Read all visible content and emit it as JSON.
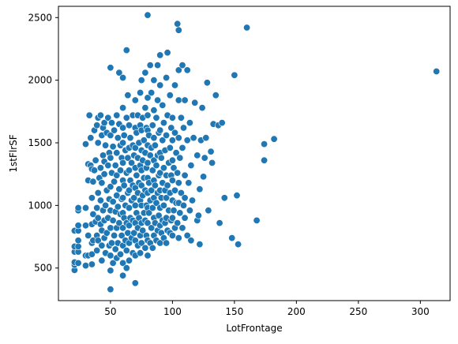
{
  "chart_data": {
    "type": "scatter",
    "title": "",
    "xlabel": "LotFrontage",
    "ylabel": "1stFlrSF",
    "xlim": [
      8,
      324
    ],
    "ylim": [
      240,
      2590
    ],
    "xticks": [
      50,
      100,
      150,
      200,
      250,
      300
    ],
    "yticks": [
      500,
      1000,
      1500,
      2000,
      2500
    ],
    "grid": false,
    "legend": "none",
    "marker_color": "#1f77b4",
    "points": [
      [
        21,
        483
      ],
      [
        21,
        525
      ],
      [
        21,
        546
      ],
      [
        21,
        630
      ],
      [
        21,
        672
      ],
      [
        21,
        798
      ],
      [
        24,
        540
      ],
      [
        24,
        630
      ],
      [
        24,
        672
      ],
      [
        24,
        720
      ],
      [
        24,
        798
      ],
      [
        24,
        840
      ],
      [
        24,
        960
      ],
      [
        24,
        980
      ],
      [
        30,
        520
      ],
      [
        30,
        600
      ],
      [
        30,
        840
      ],
      [
        30,
        980
      ],
      [
        30,
        1490
      ],
      [
        32,
        600
      ],
      [
        32,
        760
      ],
      [
        32,
        1200
      ],
      [
        32,
        1330
      ],
      [
        33,
        1720
      ],
      [
        34,
        1320
      ],
      [
        34,
        1540
      ],
      [
        35,
        530
      ],
      [
        35,
        610
      ],
      [
        35,
        700
      ],
      [
        35,
        850
      ],
      [
        35,
        1060
      ],
      [
        35,
        1290
      ],
      [
        36,
        720
      ],
      [
        36,
        930
      ],
      [
        36,
        1190
      ],
      [
        37,
        1280
      ],
      [
        37,
        1600
      ],
      [
        38,
        870
      ],
      [
        38,
        1360
      ],
      [
        39,
        640
      ],
      [
        39,
        760
      ],
      [
        39,
        980
      ],
      [
        39,
        1640
      ],
      [
        40,
        720
      ],
      [
        40,
        900
      ],
      [
        40,
        1100
      ],
      [
        40,
        1500
      ],
      [
        40,
        1700
      ],
      [
        41,
        1220
      ],
      [
        42,
        850
      ],
      [
        42,
        1040
      ],
      [
        42,
        1300
      ],
      [
        42,
        1720
      ],
      [
        43,
        560
      ],
      [
        43,
        680
      ],
      [
        43,
        800
      ],
      [
        43,
        1180
      ],
      [
        43,
        1560
      ],
      [
        44,
        960
      ],
      [
        44,
        1400
      ],
      [
        44,
        1620
      ],
      [
        45,
        740
      ],
      [
        45,
        880
      ],
      [
        45,
        1250
      ],
      [
        45,
        1350
      ],
      [
        45,
        1660
      ],
      [
        46,
        620
      ],
      [
        46,
        1000
      ],
      [
        46,
        1480
      ],
      [
        47,
        780
      ],
      [
        47,
        1120
      ],
      [
        47,
        1580
      ],
      [
        48,
        900
      ],
      [
        48,
        1320
      ],
      [
        48,
        1700
      ],
      [
        49,
        680
      ],
      [
        49,
        1050
      ],
      [
        49,
        1420
      ],
      [
        50,
        330
      ],
      [
        50,
        480
      ],
      [
        50,
        600
      ],
      [
        50,
        820
      ],
      [
        50,
        960
      ],
      [
        50,
        1150
      ],
      [
        50,
        1380
      ],
      [
        50,
        1560
      ],
      [
        50,
        2100
      ],
      [
        51,
        700
      ],
      [
        51,
        1260
      ],
      [
        51,
        1660
      ],
      [
        52,
        540
      ],
      [
        52,
        880
      ],
      [
        52,
        1030
      ],
      [
        52,
        1470
      ],
      [
        53,
        760
      ],
      [
        53,
        1190
      ],
      [
        53,
        1600
      ],
      [
        54,
        650
      ],
      [
        54,
        950
      ],
      [
        54,
        1320
      ],
      [
        55,
        580
      ],
      [
        55,
        820
      ],
      [
        55,
        1080
      ],
      [
        55,
        1240
      ],
      [
        55,
        1420
      ],
      [
        55,
        1720
      ],
      [
        56,
        700
      ],
      [
        56,
        990
      ],
      [
        56,
        1540
      ],
      [
        57,
        860
      ],
      [
        57,
        1130
      ],
      [
        57,
        1650
      ],
      [
        57,
        2060
      ],
      [
        58,
        610
      ],
      [
        58,
        930
      ],
      [
        58,
        1280
      ],
      [
        58,
        1480
      ],
      [
        59,
        760
      ],
      [
        59,
        1050
      ],
      [
        59,
        1380
      ],
      [
        60,
        440
      ],
      [
        60,
        540
      ],
      [
        60,
        680
      ],
      [
        60,
        820
      ],
      [
        60,
        940
      ],
      [
        60,
        1060
      ],
      [
        60,
        1200
      ],
      [
        60,
        1340
      ],
      [
        60,
        1500
      ],
      [
        60,
        1620
      ],
      [
        60,
        1780
      ],
      [
        60,
        2020
      ],
      [
        61,
        900
      ],
      [
        61,
        1160
      ],
      [
        61,
        1560
      ],
      [
        62,
        720
      ],
      [
        62,
        1000
      ],
      [
        62,
        1440
      ],
      [
        63,
        500
      ],
      [
        63,
        640
      ],
      [
        63,
        860
      ],
      [
        63,
        1260
      ],
      [
        63,
        1700
      ],
      [
        63,
        2240
      ],
      [
        64,
        780
      ],
      [
        64,
        1100
      ],
      [
        64,
        1380
      ],
      [
        64,
        1880
      ],
      [
        65,
        560
      ],
      [
        65,
        700
      ],
      [
        65,
        840
      ],
      [
        65,
        980
      ],
      [
        65,
        1120
      ],
      [
        65,
        1280
      ],
      [
        65,
        1460
      ],
      [
        65,
        1640
      ],
      [
        66,
        900
      ],
      [
        66,
        1200
      ],
      [
        66,
        1540
      ],
      [
        67,
        740
      ],
      [
        67,
        1040
      ],
      [
        67,
        1340
      ],
      [
        68,
        620
      ],
      [
        68,
        880
      ],
      [
        68,
        1160
      ],
      [
        68,
        1480
      ],
      [
        68,
        1720
      ],
      [
        69,
        780
      ],
      [
        69,
        1060
      ],
      [
        69,
        1400
      ],
      [
        70,
        380
      ],
      [
        70,
        600
      ],
      [
        70,
        720
      ],
      [
        70,
        860
      ],
      [
        70,
        1000
      ],
      [
        70,
        1140
      ],
      [
        70,
        1300
      ],
      [
        70,
        1460
      ],
      [
        70,
        1620
      ],
      [
        70,
        1840
      ],
      [
        71,
        940
      ],
      [
        71,
        1240
      ],
      [
        71,
        1580
      ],
      [
        72,
        680
      ],
      [
        72,
        820
      ],
      [
        72,
        1100
      ],
      [
        72,
        1380
      ],
      [
        72,
        1720
      ],
      [
        73,
        900
      ],
      [
        73,
        1180
      ],
      [
        73,
        1500
      ],
      [
        74,
        620
      ],
      [
        74,
        760
      ],
      [
        74,
        1040
      ],
      [
        74,
        1320
      ],
      [
        74,
        1640
      ],
      [
        74,
        1900
      ],
      [
        75,
        700
      ],
      [
        75,
        860
      ],
      [
        75,
        1000
      ],
      [
        75,
        1160
      ],
      [
        75,
        1280
      ],
      [
        75,
        1440
      ],
      [
        75,
        1600
      ],
      [
        75,
        2000
      ],
      [
        76,
        800
      ],
      [
        76,
        1080
      ],
      [
        76,
        1360
      ],
      [
        76,
        1700
      ],
      [
        77,
        940
      ],
      [
        77,
        1220
      ],
      [
        77,
        1520
      ],
      [
        78,
        660
      ],
      [
        78,
        880
      ],
      [
        78,
        1120
      ],
      [
        78,
        1420
      ],
      [
        78,
        1780
      ],
      [
        78,
        2060
      ],
      [
        79,
        760
      ],
      [
        79,
        1000
      ],
      [
        79,
        1300
      ],
      [
        79,
        1620
      ],
      [
        80,
        2520
      ],
      [
        80,
        600
      ],
      [
        80,
        720
      ],
      [
        80,
        860
      ],
      [
        80,
        980
      ],
      [
        80,
        1100
      ],
      [
        80,
        1220
      ],
      [
        80,
        1340
      ],
      [
        80,
        1480
      ],
      [
        80,
        1600
      ],
      [
        80,
        1720
      ],
      [
        80,
        1860
      ],
      [
        81,
        940
      ],
      [
        81,
        1180
      ],
      [
        81,
        1560
      ],
      [
        82,
        700
      ],
      [
        82,
        1040
      ],
      [
        82,
        1400
      ],
      [
        82,
        2120
      ],
      [
        83,
        820
      ],
      [
        83,
        1120
      ],
      [
        83,
        1460
      ],
      [
        83,
        1900
      ],
      [
        84,
        660
      ],
      [
        84,
        980
      ],
      [
        84,
        1280
      ],
      [
        84,
        1640
      ],
      [
        85,
        760
      ],
      [
        85,
        900
      ],
      [
        85,
        1060
      ],
      [
        85,
        1200
      ],
      [
        85,
        1360
      ],
      [
        85,
        1540
      ],
      [
        85,
        1760
      ],
      [
        85,
        2000
      ],
      [
        86,
        860
      ],
      [
        86,
        1160
      ],
      [
        86,
        1480
      ],
      [
        87,
        720
      ],
      [
        87,
        1020
      ],
      [
        87,
        1320
      ],
      [
        87,
        1700
      ],
      [
        88,
        800
      ],
      [
        88,
        1100
      ],
      [
        88,
        1400
      ],
      [
        88,
        1840
      ],
      [
        88,
        2120
      ],
      [
        89,
        920
      ],
      [
        89,
        1240
      ],
      [
        89,
        1580
      ],
      [
        90,
        700
      ],
      [
        90,
        840
      ],
      [
        90,
        980
      ],
      [
        90,
        1120
      ],
      [
        90,
        1260
      ],
      [
        90,
        1420
      ],
      [
        90,
        1600
      ],
      [
        90,
        1960
      ],
      [
        90,
        2200
      ],
      [
        91,
        780
      ],
      [
        91,
        1060
      ],
      [
        91,
        1380
      ],
      [
        92,
        880
      ],
      [
        92,
        1180
      ],
      [
        92,
        1520
      ],
      [
        92,
        1800
      ],
      [
        93,
        740
      ],
      [
        93,
        1000
      ],
      [
        93,
        1300
      ],
      [
        93,
        1660
      ],
      [
        94,
        860
      ],
      [
        94,
        1120
      ],
      [
        94,
        1440
      ],
      [
        95,
        700
      ],
      [
        95,
        900
      ],
      [
        95,
        1060
      ],
      [
        95,
        1240
      ],
      [
        95,
        1560
      ],
      [
        95,
        2020
      ],
      [
        96,
        800
      ],
      [
        96,
        1160
      ],
      [
        96,
        1720
      ],
      [
        96,
        2220
      ],
      [
        97,
        960
      ],
      [
        97,
        1340
      ],
      [
        98,
        780
      ],
      [
        98,
        1100
      ],
      [
        98,
        1460
      ],
      [
        98,
        1880
      ],
      [
        99,
        880
      ],
      [
        99,
        1240
      ],
      [
        99,
        1620
      ],
      [
        100,
        760
      ],
      [
        100,
        900
      ],
      [
        100,
        1040
      ],
      [
        100,
        1200
      ],
      [
        100,
        1360
      ],
      [
        100,
        1520
      ],
      [
        100,
        1700
      ],
      [
        101,
        960
      ],
      [
        101,
        1300
      ],
      [
        102,
        820
      ],
      [
        102,
        1120
      ],
      [
        102,
        1580
      ],
      [
        102,
        1960
      ],
      [
        103,
        1020
      ],
      [
        103,
        1420
      ],
      [
        104,
        860
      ],
      [
        104,
        1260
      ],
      [
        104,
        2450
      ],
      [
        105,
        740
      ],
      [
        105,
        1020
      ],
      [
        105,
        1180
      ],
      [
        105,
        1540
      ],
      [
        105,
        1840
      ],
      [
        105,
        2080
      ],
      [
        105,
        2400
      ],
      [
        106,
        940
      ],
      [
        106,
        1380
      ],
      [
        107,
        1100
      ],
      [
        107,
        1700
      ],
      [
        108,
        820
      ],
      [
        108,
        1460
      ],
      [
        108,
        2120
      ],
      [
        109,
        1000
      ],
      [
        109,
        1620
      ],
      [
        110,
        900
      ],
      [
        110,
        1060
      ],
      [
        110,
        1240
      ],
      [
        110,
        1840
      ],
      [
        112,
        760
      ],
      [
        112,
        1520
      ],
      [
        112,
        2080
      ],
      [
        113,
        1180
      ],
      [
        114,
        960
      ],
      [
        114,
        1660
      ],
      [
        115,
        720
      ],
      [
        115,
        1320
      ],
      [
        116,
        1040
      ],
      [
        117,
        1540
      ],
      [
        118,
        1820
      ],
      [
        120,
        880
      ],
      [
        120,
        1400
      ],
      [
        121,
        920
      ],
      [
        122,
        690
      ],
      [
        122,
        1130
      ],
      [
        123,
        1520
      ],
      [
        124,
        1780
      ],
      [
        125,
        1230
      ],
      [
        126,
        1380
      ],
      [
        127,
        1540
      ],
      [
        128,
        1980
      ],
      [
        129,
        960
      ],
      [
        131,
        1430
      ],
      [
        132,
        1340
      ],
      [
        133,
        1650
      ],
      [
        135,
        1880
      ],
      [
        137,
        1640
      ],
      [
        138,
        860
      ],
      [
        140,
        1660
      ],
      [
        142,
        1060
      ],
      [
        148,
        740
      ],
      [
        150,
        2040
      ],
      [
        152,
        1080
      ],
      [
        153,
        690
      ],
      [
        160,
        2420
      ],
      [
        168,
        880
      ],
      [
        174,
        1360
      ],
      [
        174,
        1490
      ],
      [
        182,
        1530
      ],
      [
        313,
        2070
      ]
    ]
  }
}
